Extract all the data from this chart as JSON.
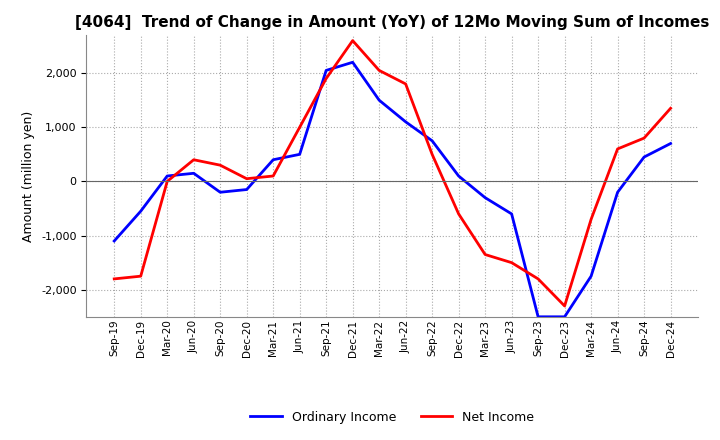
{
  "title": "[4064]  Trend of Change in Amount (YoY) of 12Mo Moving Sum of Incomes",
  "ylabel": "Amount (million yen)",
  "ylim": [
    -2500,
    2700
  ],
  "yticks": [
    -2000,
    -1000,
    0,
    1000,
    2000
  ],
  "background_color": "#ffffff",
  "grid_color": "#aaaaaa",
  "ordinary_income_color": "#0000ff",
  "net_income_color": "#ff0000",
  "line_width": 2.0,
  "x_labels": [
    "Sep-19",
    "Dec-19",
    "Mar-20",
    "Jun-20",
    "Sep-20",
    "Dec-20",
    "Mar-21",
    "Jun-21",
    "Sep-21",
    "Dec-21",
    "Mar-22",
    "Jun-22",
    "Sep-22",
    "Dec-22",
    "Mar-23",
    "Jun-23",
    "Sep-23",
    "Dec-23",
    "Mar-24",
    "Jun-24",
    "Sep-24",
    "Dec-24"
  ],
  "ordinary_income": [
    -1100,
    -550,
    100,
    150,
    -200,
    -150,
    400,
    500,
    2050,
    2200,
    1500,
    1100,
    750,
    100,
    -300,
    -600,
    -2500,
    -2500,
    -1750,
    -200,
    450,
    700
  ],
  "net_income": [
    -1800,
    -1750,
    0,
    400,
    300,
    50,
    100,
    1000,
    1900,
    2600,
    2050,
    1800,
    500,
    -600,
    -1350,
    -1500,
    -1800,
    -2300,
    -700,
    600,
    800,
    1350
  ]
}
